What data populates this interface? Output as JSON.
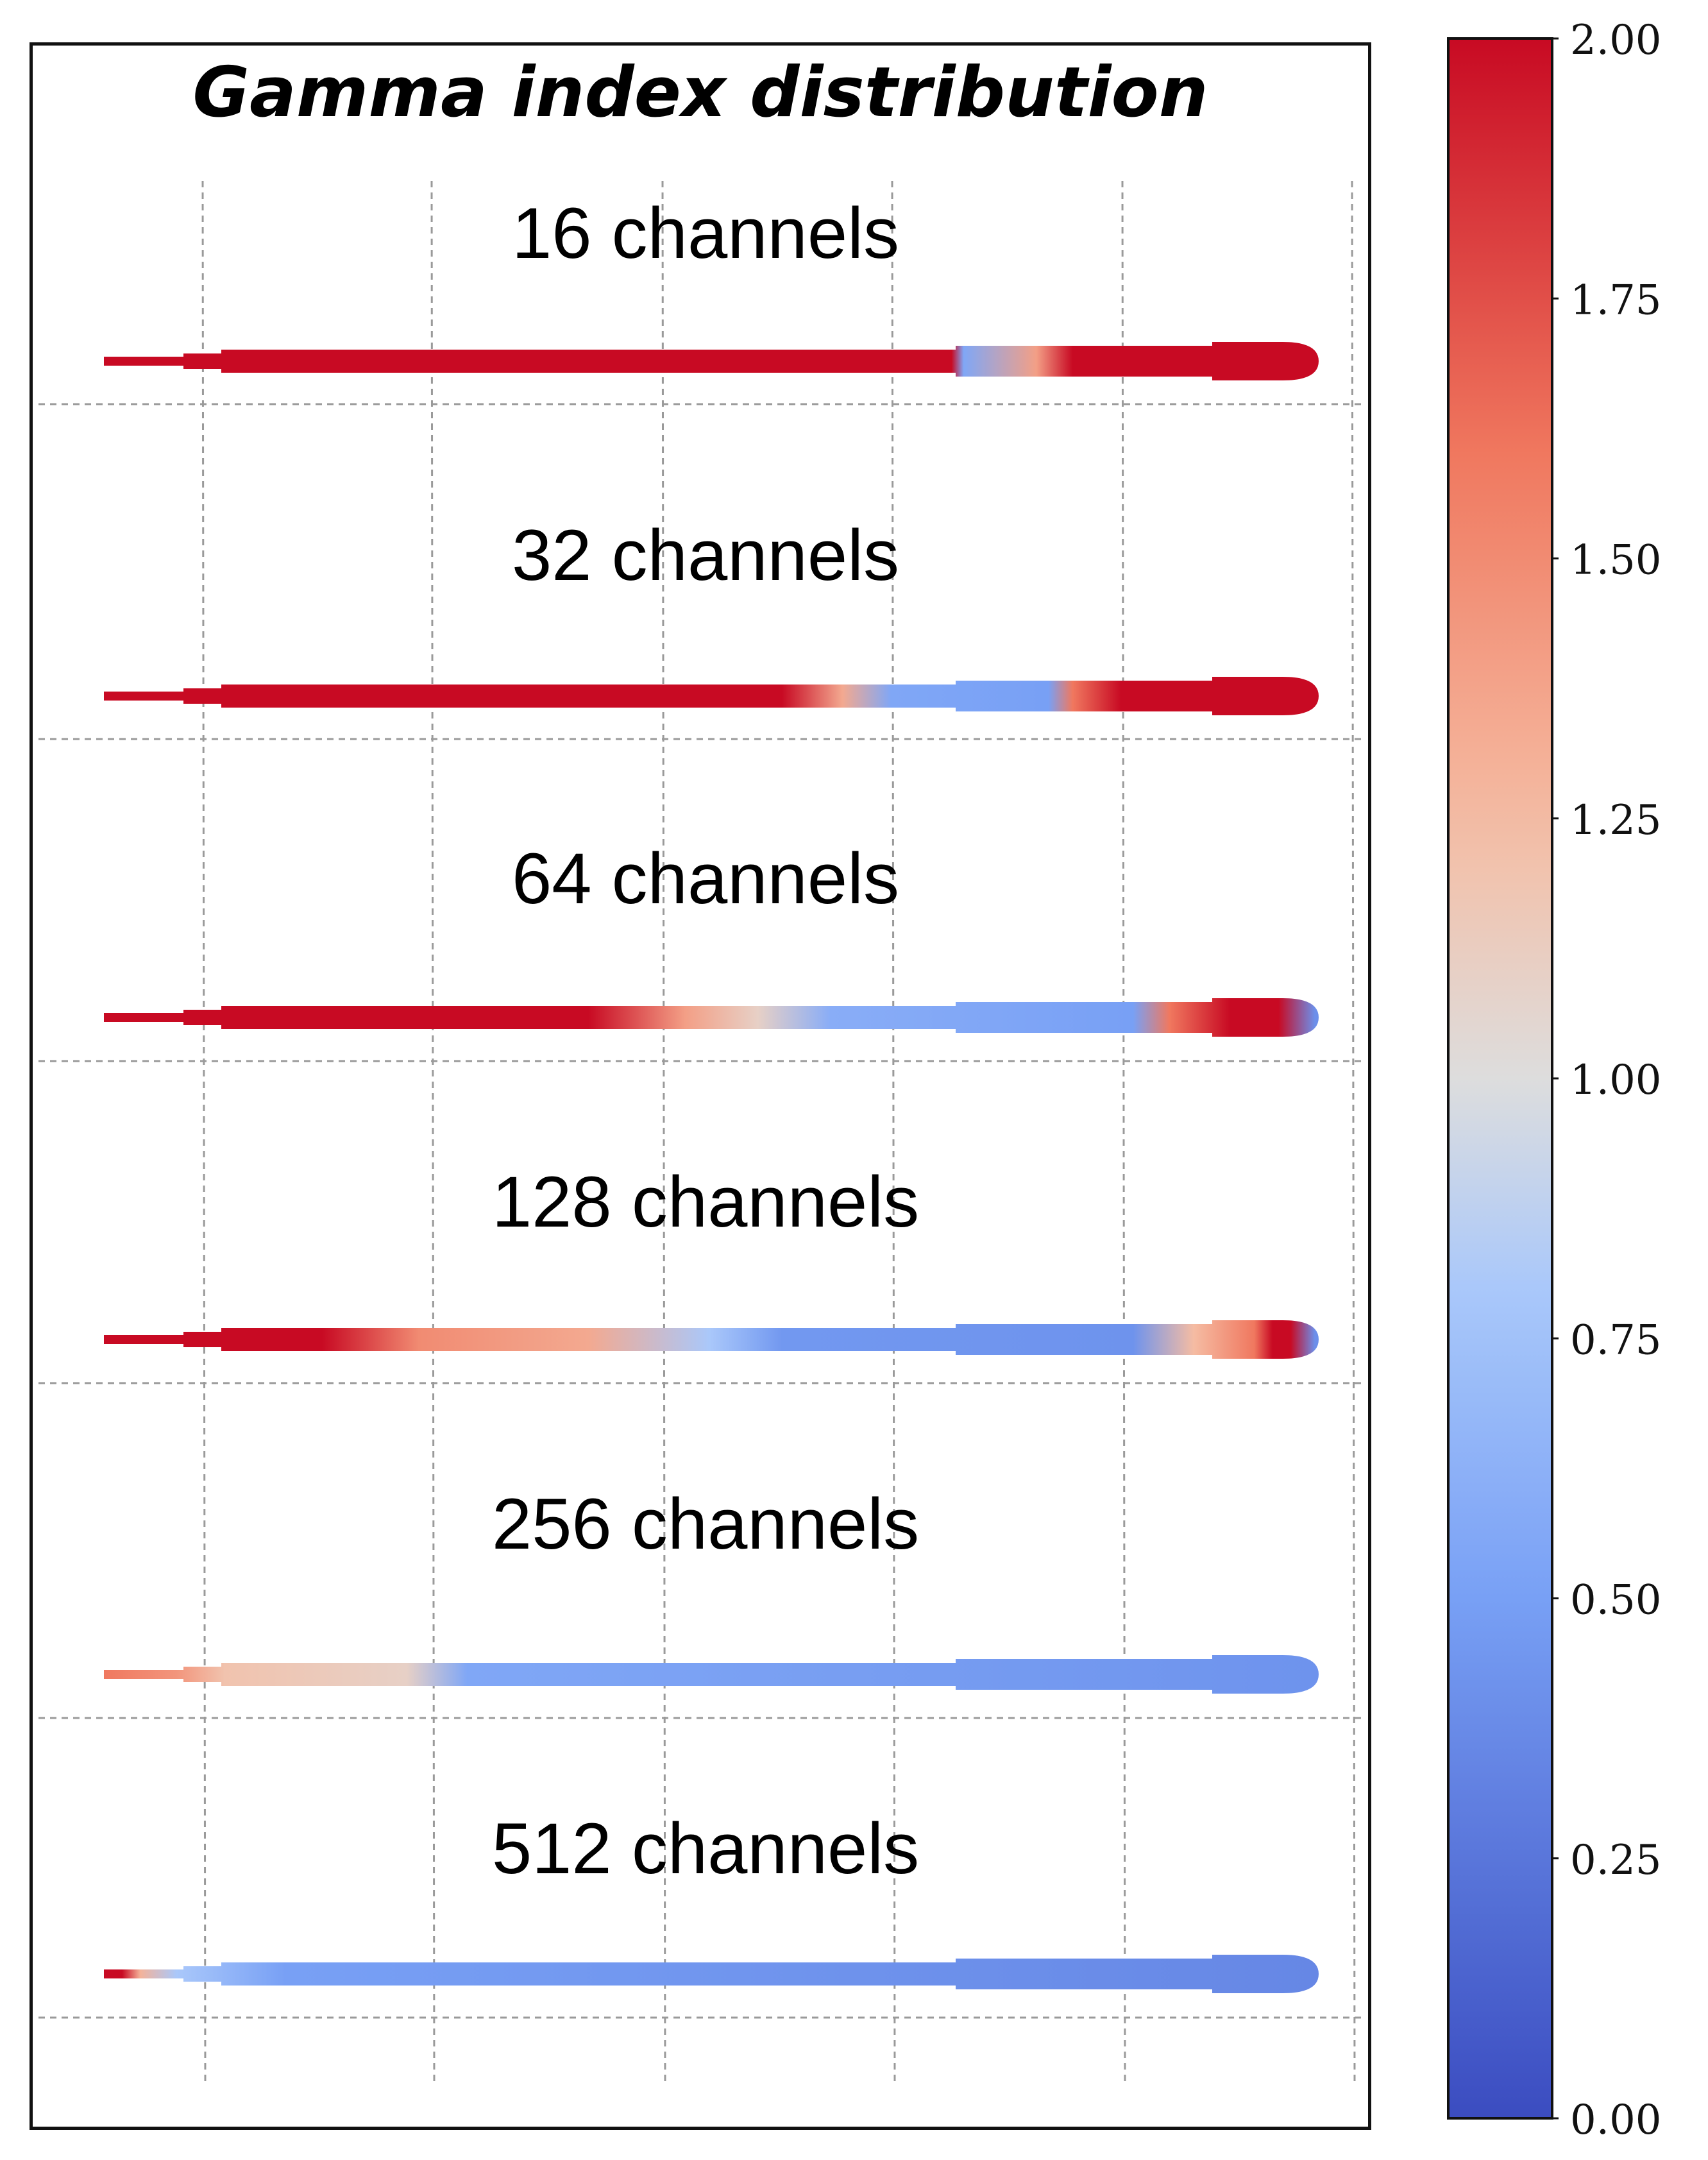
{
  "chart_data": {
    "type": "heatmap",
    "title": "Gamma index distribution",
    "colorbar": {
      "min": 0.0,
      "max": 2.0,
      "colormap": "coolwarm",
      "ticks": [
        "0.00",
        "0.25",
        "0.50",
        "0.75",
        "1.00",
        "1.25",
        "1.50",
        "1.75",
        "2.00"
      ]
    },
    "grid": true,
    "panels": [
      {
        "label": "16 channels",
        "gamma_profile": [
          [
            0,
            2.0
          ],
          [
            0.7,
            2.0
          ],
          [
            0.71,
            0.55
          ],
          [
            0.77,
            1.4
          ],
          [
            0.8,
            2.0
          ],
          [
            1.0,
            2.0
          ]
        ]
      },
      {
        "label": "32 channels",
        "gamma_profile": [
          [
            0,
            2.0
          ],
          [
            0.56,
            2.0
          ],
          [
            0.61,
            1.35
          ],
          [
            0.65,
            0.55
          ],
          [
            0.78,
            0.5
          ],
          [
            0.8,
            1.6
          ],
          [
            0.84,
            2.0
          ],
          [
            1.0,
            2.0
          ]
        ]
      },
      {
        "label": "64 channels",
        "gamma_profile": [
          [
            0,
            2.0
          ],
          [
            0.4,
            2.0
          ],
          [
            0.48,
            1.4
          ],
          [
            0.54,
            1.1
          ],
          [
            0.6,
            0.6
          ],
          [
            0.85,
            0.5
          ],
          [
            0.88,
            1.6
          ],
          [
            0.93,
            2.0
          ],
          [
            0.97,
            2.0
          ],
          [
            1.0,
            0.4
          ]
        ]
      },
      {
        "label": "128 channels",
        "gamma_profile": [
          [
            0,
            2.0
          ],
          [
            0.18,
            2.0
          ],
          [
            0.26,
            1.5
          ],
          [
            0.4,
            1.35
          ],
          [
            0.5,
            0.8
          ],
          [
            0.56,
            0.45
          ],
          [
            0.85,
            0.42
          ],
          [
            0.9,
            1.25
          ],
          [
            0.95,
            1.6
          ],
          [
            0.965,
            2.0
          ],
          [
            0.98,
            2.0
          ],
          [
            1.0,
            0.4
          ]
        ]
      },
      {
        "label": "256 channels",
        "gamma_profile": [
          [
            0,
            1.6
          ],
          [
            0.06,
            1.45
          ],
          [
            0.1,
            1.2
          ],
          [
            0.25,
            1.1
          ],
          [
            0.3,
            0.55
          ],
          [
            1.0,
            0.42
          ]
        ]
      },
      {
        "label": "512 channels",
        "gamma_profile": [
          [
            0,
            2.0
          ],
          [
            0.015,
            2.0
          ],
          [
            0.03,
            1.3
          ],
          [
            0.06,
            0.8
          ],
          [
            0.15,
            0.5
          ],
          [
            1.0,
            0.35
          ]
        ]
      }
    ]
  }
}
